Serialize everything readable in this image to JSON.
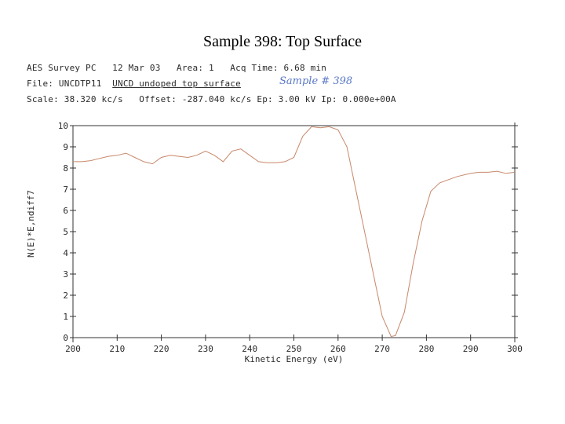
{
  "page": {
    "title": "Sample 398: Top Surface",
    "header_line1": "AES Survey PC   12 Mar 03   Area: 1   Acq Time: 6.68 min",
    "file_label": "File: UNCDTP11  ",
    "file_desc": "UNCD undoped top surface",
    "handwritten_note": "Sample # 398",
    "header_line3": "Scale: 38.320 kc/s   Offset: -287.040 kc/s Ep: 3.00 kV Ip: 0.000e+00A"
  },
  "chart_data": {
    "type": "line",
    "title": "",
    "xlabel": "Kinetic Energy (eV)",
    "ylabel": "N(E)*E,ndiff7",
    "xlim": [
      200,
      300
    ],
    "ylim": [
      0,
      10
    ],
    "x_ticks": [
      "200",
      "210",
      "220",
      "230",
      "240",
      "250",
      "260",
      "270",
      "280",
      "290",
      "300"
    ],
    "y_ticks": [
      "0",
      "1",
      "2",
      "3",
      "4",
      "5",
      "6",
      "7",
      "8",
      "9",
      "10"
    ],
    "grid": false,
    "colors": {
      "line": "#c8876a",
      "axis": "#333333"
    },
    "series": [
      {
        "x": [
          200,
          202,
          204,
          206,
          208,
          210,
          212,
          214,
          216,
          218,
          220,
          222,
          224,
          226,
          228,
          230,
          232,
          234,
          236,
          238,
          240,
          242,
          244,
          246,
          248,
          250,
          252,
          254,
          256,
          258,
          260,
          262,
          264,
          266,
          268,
          270,
          272,
          273,
          275,
          277,
          279,
          281,
          283,
          285,
          287,
          290,
          292,
          294,
          296,
          298,
          300
        ],
        "y": [
          8.3,
          8.3,
          8.35,
          8.45,
          8.55,
          8.6,
          8.7,
          8.5,
          8.3,
          8.2,
          8.5,
          8.6,
          8.55,
          8.5,
          8.6,
          8.8,
          8.6,
          8.3,
          8.8,
          8.9,
          8.6,
          8.3,
          8.25,
          8.25,
          8.3,
          8.5,
          9.5,
          9.95,
          9.9,
          9.95,
          9.8,
          9.0,
          7.0,
          5.0,
          3.0,
          1.0,
          0.05,
          0.1,
          1.2,
          3.5,
          5.5,
          6.9,
          7.3,
          7.45,
          7.6,
          7.75,
          7.8,
          7.8,
          7.85,
          7.75,
          7.8
        ]
      }
    ]
  }
}
